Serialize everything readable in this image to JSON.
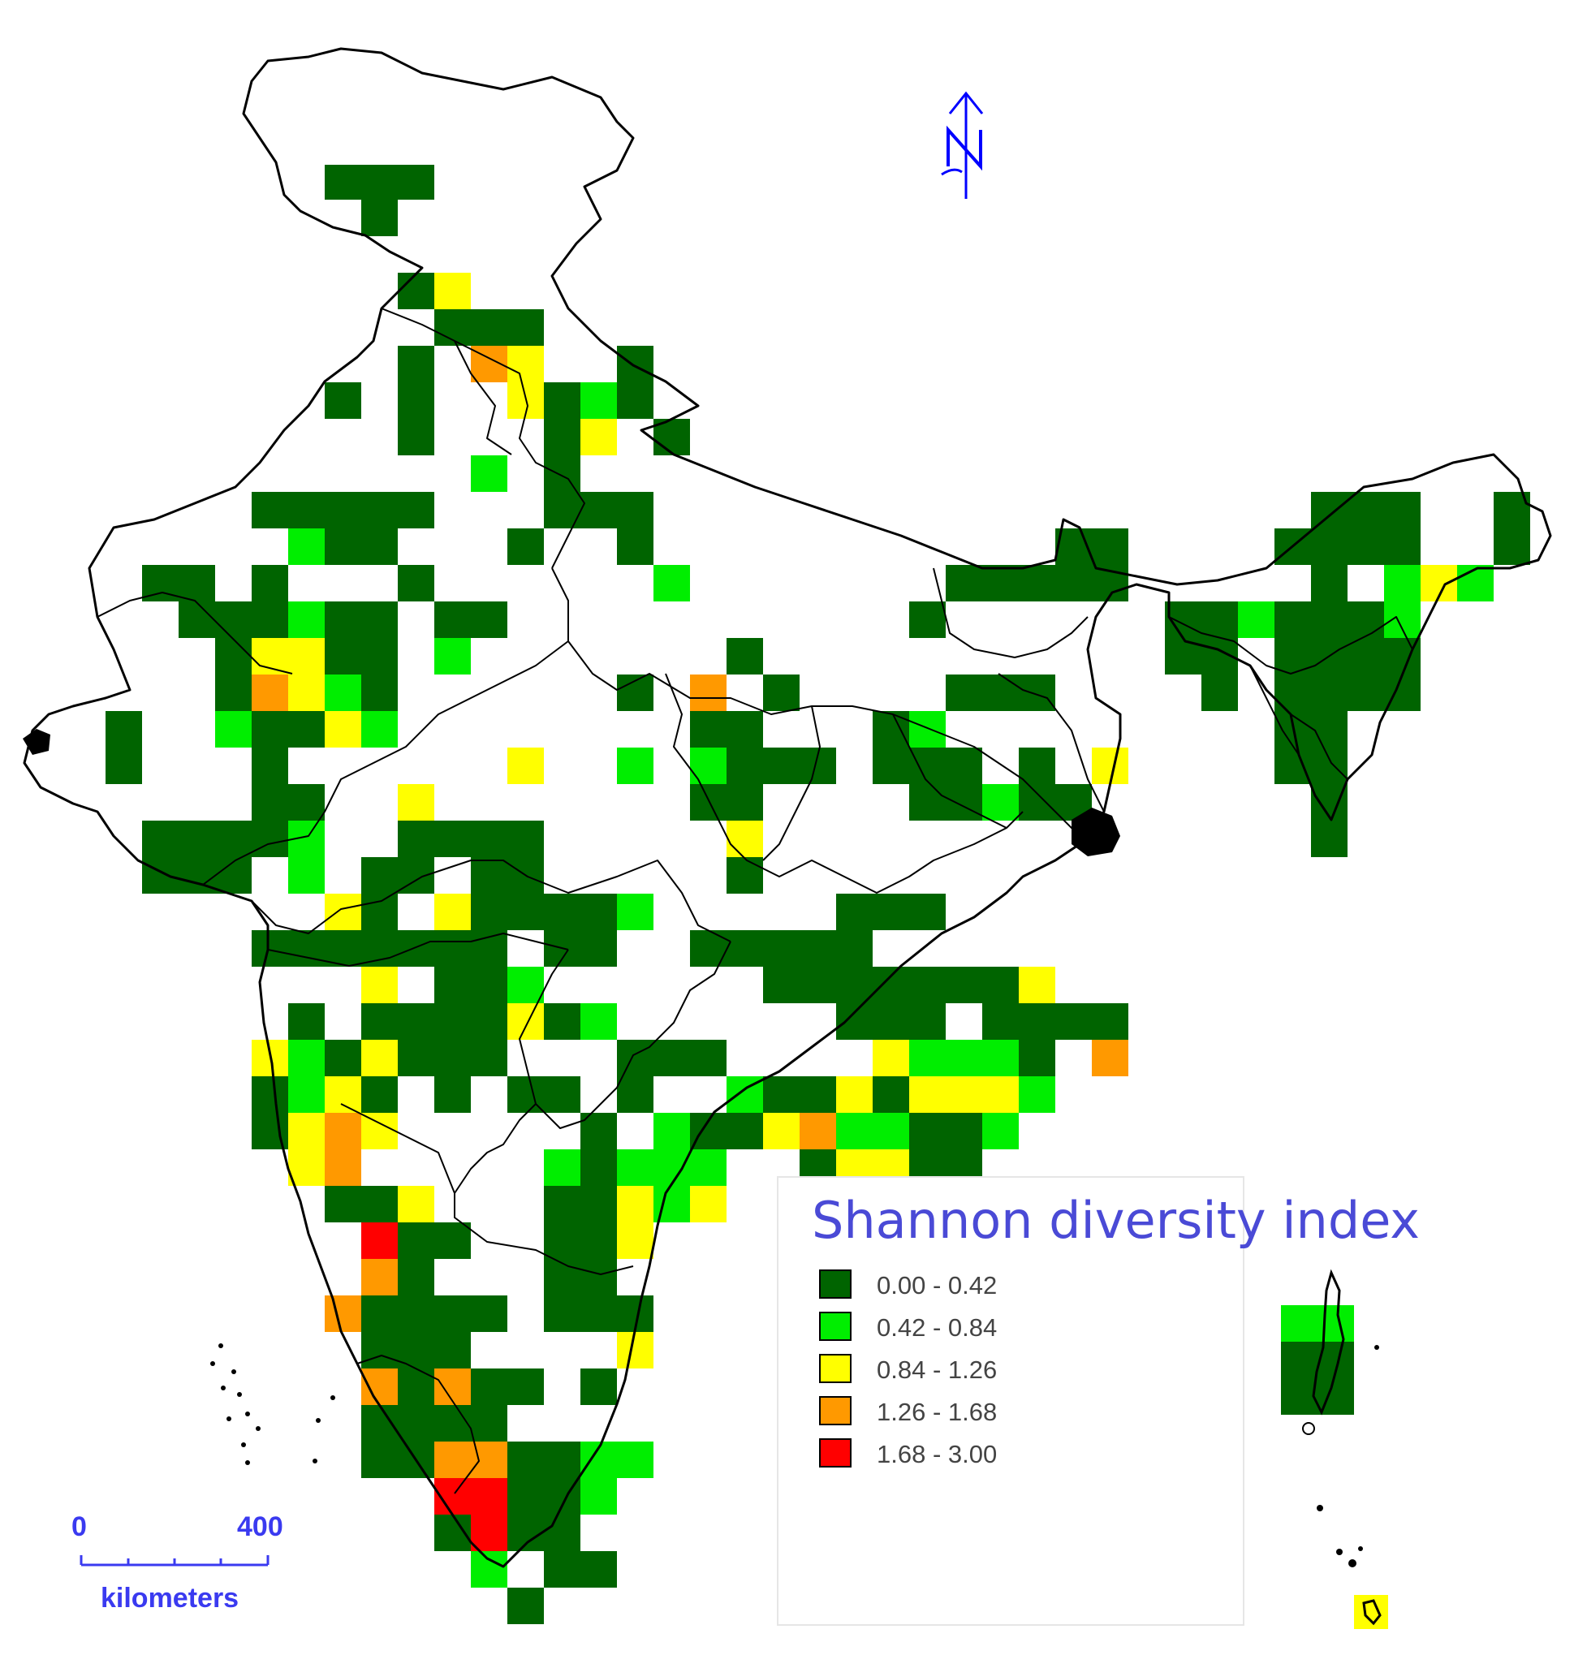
{
  "legend": {
    "title": "Shannon diversity index",
    "classes": [
      {
        "label": "0.00 - 0.42",
        "color": "#006400"
      },
      {
        "label": "0.42 - 0.84",
        "color": "#00ee00"
      },
      {
        "label": "0.84 - 1.26",
        "color": "#ffff00"
      },
      {
        "label": "1.26 - 1.68",
        "color": "#ff9900"
      },
      {
        "label": "1.68 - 3.00",
        "color": "#ff0000"
      }
    ]
  },
  "scale_bar": {
    "start_label": "0",
    "end_label": "400",
    "unit": "kilometers"
  },
  "north_arrow": {
    "letter": "N",
    "color": "#0000ff"
  }
}
